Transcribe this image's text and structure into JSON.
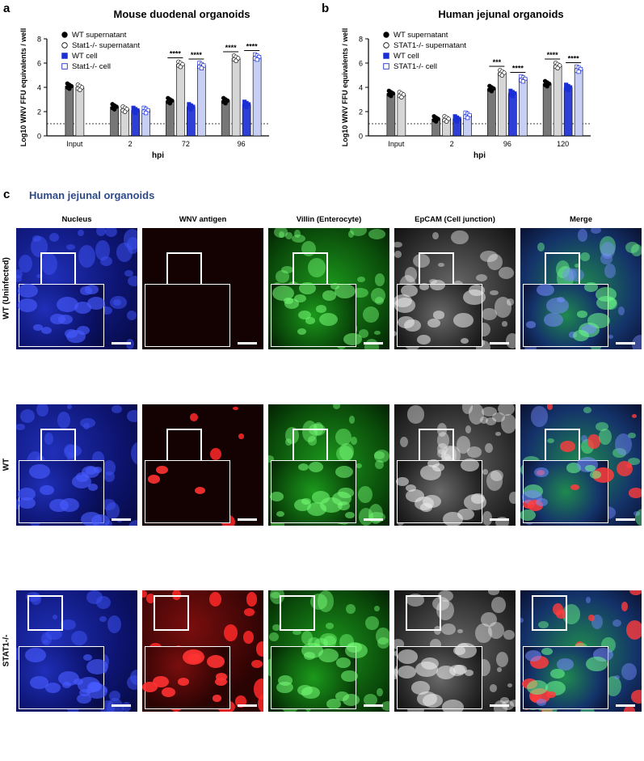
{
  "panels": {
    "a": "a",
    "b": "b",
    "c": "c"
  },
  "chart_data": [
    {
      "type": "bar",
      "title": "Mouse duodenal organoids",
      "ylabel": "Log10 WNV FFU equivalents / well",
      "xlabel": "hpi",
      "categories": [
        "Input",
        "2",
        "72",
        "96"
      ],
      "ylim": [
        0,
        8
      ],
      "yticks": [
        "0",
        "2",
        "4",
        "6",
        "8"
      ],
      "limit_of_detection": 1,
      "legend_placement": "top-left",
      "series": [
        {
          "name": "WT supernatant",
          "marker": "filled-circle",
          "fill": "#777777",
          "values": [
            4.1,
            2.4,
            2.9,
            2.9
          ]
        },
        {
          "name": "Stat1-/- supernatant",
          "marker": "open-circle",
          "fill": "#d6d6d6",
          "values": [
            4.0,
            2.2,
            5.9,
            6.4
          ]
        },
        {
          "name": "WT cell",
          "marker": "filled-square",
          "fill": "#2d3fd6",
          "values": [
            null,
            2.1,
            2.4,
            2.6
          ]
        },
        {
          "name": "Stat1-/- cell",
          "marker": "open-square",
          "fill": "#c7cff5",
          "values": [
            null,
            2.1,
            5.8,
            6.5
          ]
        }
      ],
      "significance": [
        {
          "category": "72",
          "pair": "supernatant",
          "label": "****"
        },
        {
          "category": "72",
          "pair": "cell",
          "label": "****"
        },
        {
          "category": "96",
          "pair": "supernatant",
          "label": "****"
        },
        {
          "category": "96",
          "pair": "cell",
          "label": "****"
        }
      ]
    },
    {
      "type": "bar",
      "title": "Human jejunal organoids",
      "ylabel": "Log10 WNV FFU equivalents / well",
      "xlabel": "hpi",
      "categories": [
        "Input",
        "2",
        "96",
        "120"
      ],
      "ylim": [
        0,
        8
      ],
      "yticks": [
        "0",
        "2",
        "4",
        "6",
        "8"
      ],
      "limit_of_detection": 1,
      "legend_placement": "top-left",
      "series": [
        {
          "name": "WT supernatant",
          "marker": "filled-circle",
          "fill": "#777777",
          "values": [
            3.5,
            1.4,
            3.9,
            4.3
          ]
        },
        {
          "name": "STAT1-/- supernatant",
          "marker": "open-circle",
          "fill": "#d6d6d6",
          "values": [
            3.4,
            1.4,
            5.2,
            5.8
          ]
        },
        {
          "name": "WT cell",
          "marker": "filled-square",
          "fill": "#2d3fd6",
          "values": [
            null,
            1.4,
            3.5,
            4.0
          ]
        },
        {
          "name": "STAT1-/- cell",
          "marker": "open-square",
          "fill": "#c7cff5",
          "values": [
            null,
            1.7,
            4.7,
            5.5
          ]
        }
      ],
      "significance": [
        {
          "category": "96",
          "pair": "supernatant",
          "label": "***"
        },
        {
          "category": "96",
          "pair": "cell",
          "label": "****"
        },
        {
          "category": "120",
          "pair": "supernatant",
          "label": "****"
        },
        {
          "category": "120",
          "pair": "cell",
          "label": "****"
        }
      ]
    }
  ],
  "micrographs": {
    "title": "Human jejunal organoids",
    "columns": [
      {
        "label": "Nucleus",
        "color": "#1a2bd0"
      },
      {
        "label": "WNV antigen",
        "color": "#d01414"
      },
      {
        "label": "Villin (Enterocyte)",
        "color": "#1fc21f"
      },
      {
        "label": "EpCAM (Cell junction)",
        "color": "#bdbdbd"
      },
      {
        "label": "Merge",
        "color": "#2a8a6a"
      }
    ],
    "rows": [
      {
        "label": "WT (Uninfected)",
        "infection": 0.0
      },
      {
        "label": "WT",
        "infection": 0.3
      },
      {
        "label": "STAT1-/-",
        "infection": 1.0
      }
    ]
  }
}
